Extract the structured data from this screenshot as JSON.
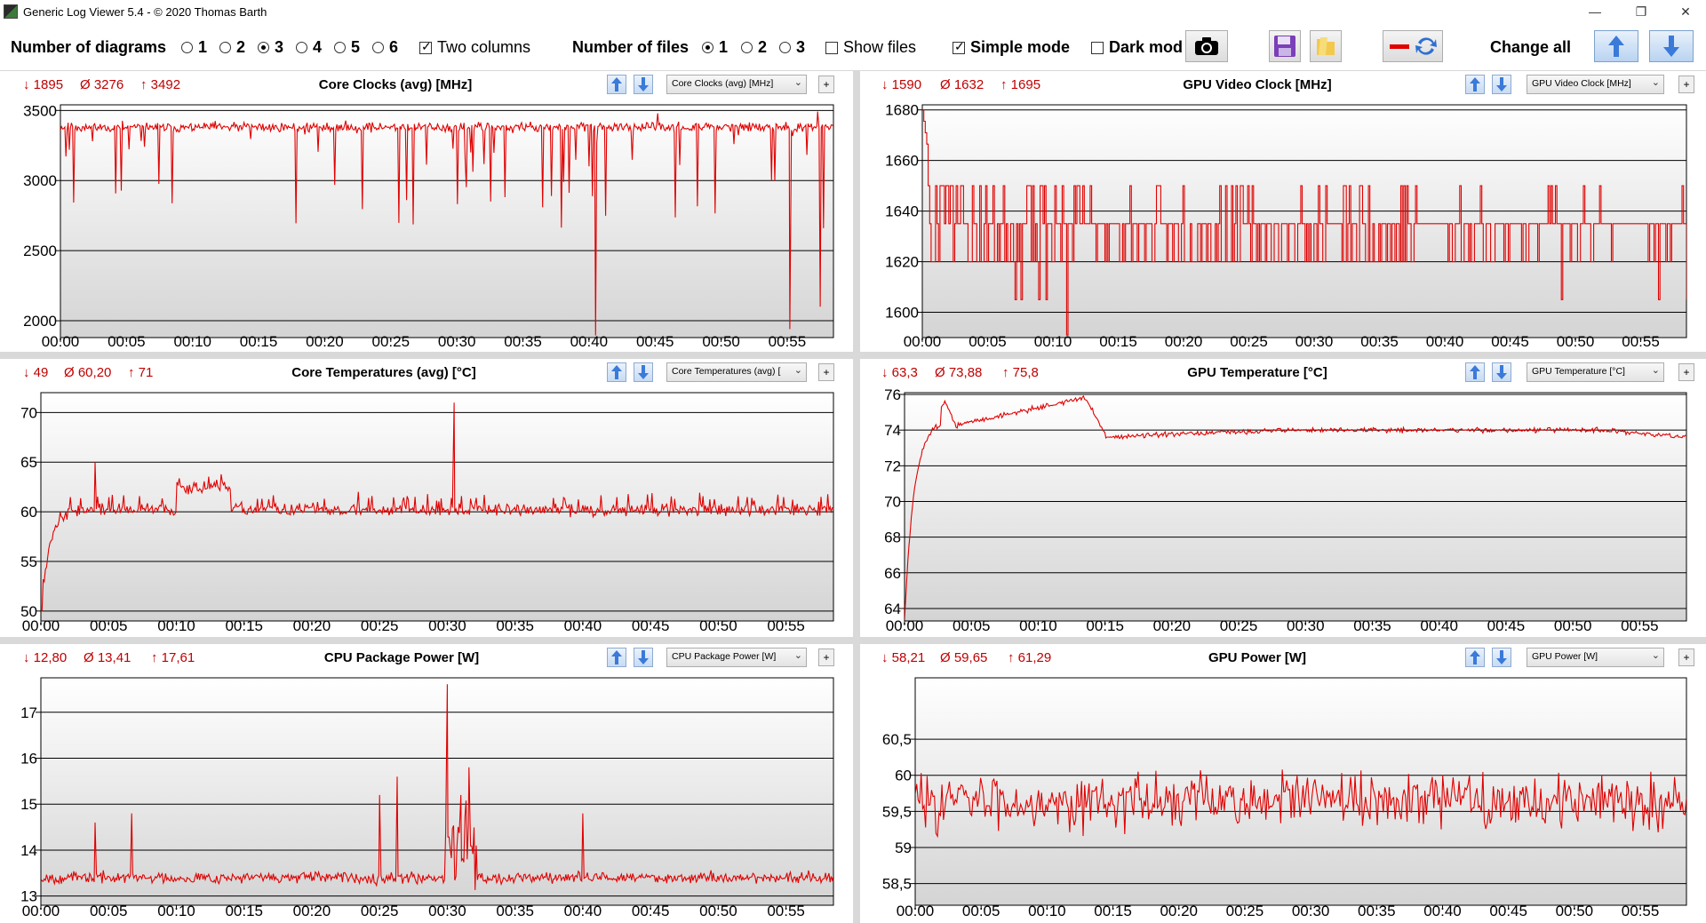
{
  "window": {
    "title": "Generic Log Viewer 5.4 - © 2020 Thomas Barth",
    "minimize": "—",
    "restore": "❐",
    "close": "✕"
  },
  "toolbar": {
    "num_diagrams_label": "Number of diagrams",
    "diagram_options": [
      "1",
      "2",
      "3",
      "4",
      "5",
      "6"
    ],
    "diagram_selected": "3",
    "two_columns_label": "Two columns",
    "two_columns_checked": true,
    "num_files_label": "Number of files",
    "file_options": [
      "1",
      "2",
      "3"
    ],
    "file_selected": "1",
    "show_files_label": "Show files",
    "show_files_checked": false,
    "simple_mode_label": "Simple mode",
    "simple_mode_checked": true,
    "dark_mode_label": "Dark mod",
    "dark_mode_checked": false,
    "change_all_label": "Change all",
    "icons": [
      "camera-icon",
      "save-icon",
      "folder-icon",
      "line-swap-icon",
      "arrow-up-icon",
      "arrow-down-icon"
    ]
  },
  "colors": {
    "series": "#e00000",
    "stats": "#c00000",
    "accent_blue": "#3a7ad9"
  },
  "panels": [
    {
      "id": "core-clocks",
      "min": "1895",
      "avg": "3276",
      "max": "3492",
      "title": "Core Clocks (avg) [MHz]",
      "select_value": "Core Clocks (avg) [MHz]",
      "chart_data": {
        "type": "line",
        "x_tick_labels": [
          "00:00",
          "00:05",
          "00:10",
          "00:15",
          "00:20",
          "00:25",
          "00:30",
          "00:35",
          "00:40",
          "00:45",
          "00:50",
          "00:55"
        ],
        "x_range_minutes": [
          0,
          58.5
        ],
        "y_ticks": [
          {
            "value": 2000,
            "label": "2000"
          },
          {
            "value": 2500,
            "label": "2500"
          },
          {
            "value": 3000,
            "label": "3000"
          },
          {
            "value": 3500,
            "label": "3500"
          }
        ],
        "ylim": [
          1880,
          3540
        ],
        "baseline": 3380,
        "noise": 50,
        "spike_rate": 0.07,
        "spike_depth": 700,
        "big_dips": [
          {
            "t": 40.5,
            "v": 1895
          },
          {
            "t": 55.2,
            "v": 1940
          },
          {
            "t": 57.5,
            "v": 2100
          }
        ],
        "peaks": [
          {
            "t": 45.2,
            "v": 3480
          },
          {
            "t": 57.3,
            "v": 3492
          }
        ],
        "seed": 11,
        "points": 700
      }
    },
    {
      "id": "gpu-video-clock",
      "min": "1590",
      "avg": "1632",
      "max": "1695",
      "title": "GPU Video Clock [MHz]",
      "select_value": "GPU Video Clock [MHz]",
      "chart_data": {
        "type": "step",
        "x_tick_labels": [
          "00:00",
          "00:05",
          "00:10",
          "00:15",
          "00:20",
          "00:25",
          "00:30",
          "00:35",
          "00:40",
          "00:45",
          "00:50",
          "00:55"
        ],
        "x_range_minutes": [
          0,
          58.5
        ],
        "y_ticks": [
          {
            "value": 1600,
            "label": "1600"
          },
          {
            "value": 1620,
            "label": "1620"
          },
          {
            "value": 1640,
            "label": "1640"
          },
          {
            "value": 1660,
            "label": "1660"
          },
          {
            "value": 1680,
            "label": "1680"
          }
        ],
        "ylim": [
          1590,
          1682
        ],
        "levels": [
          1620,
          1635,
          1650
        ],
        "seed": 23,
        "points": 520
      }
    },
    {
      "id": "core-temps",
      "min": "49",
      "avg": "60,20",
      "max": "71",
      "title": "Core Temperatures (avg) [°C]",
      "select_value": "Core Temperatures (avg) [",
      "chart_data": {
        "type": "line",
        "x_tick_labels": [
          "00:00",
          "00:05",
          "00:10",
          "00:15",
          "00:20",
          "00:25",
          "00:30",
          "00:35",
          "00:40",
          "00:45",
          "00:50",
          "00:55"
        ],
        "x_range_minutes": [
          0,
          58.5
        ],
        "y_ticks": [
          {
            "value": 50,
            "label": "50"
          },
          {
            "value": 55,
            "label": "55"
          },
          {
            "value": 60,
            "label": "60"
          },
          {
            "value": 65,
            "label": "65"
          },
          {
            "value": 70,
            "label": "70"
          }
        ],
        "ylim": [
          49,
          72
        ],
        "start": 49,
        "settle": 60.2,
        "warm_segment": [
          10,
          14,
          62.5
        ],
        "peaks": [
          {
            "t": 30.5,
            "v": 71
          },
          {
            "t": 4,
            "v": 65
          }
        ],
        "noise": 0.9,
        "seed": 37,
        "points": 700
      }
    },
    {
      "id": "gpu-temp",
      "min": "63,3",
      "avg": "73,88",
      "max": "75,8",
      "title": "GPU Temperature [°C]",
      "select_value": "GPU Temperature [°C]",
      "chart_data": {
        "type": "line",
        "x_tick_labels": [
          "00:00",
          "00:05",
          "00:10",
          "00:15",
          "00:20",
          "00:25",
          "00:30",
          "00:35",
          "00:40",
          "00:45",
          "00:50",
          "00:55"
        ],
        "x_range_minutes": [
          0,
          58.5
        ],
        "y_ticks": [
          {
            "value": 64,
            "label": "64"
          },
          {
            "value": 66,
            "label": "66"
          },
          {
            "value": 68,
            "label": "68"
          },
          {
            "value": 70,
            "label": "70"
          },
          {
            "value": 72,
            "label": "72"
          },
          {
            "value": 74,
            "label": "74"
          },
          {
            "value": 76,
            "label": "76"
          }
        ],
        "ylim": [
          63.3,
          76.1
        ],
        "start": 63.3,
        "hump_peak": 75.8,
        "settle": 73.85,
        "noise": 0.2,
        "seed": 51,
        "points": 700
      }
    },
    {
      "id": "cpu-power",
      "min": "12,80",
      "avg": "13,41",
      "max": "17,61",
      "title": "CPU Package Power [W]",
      "select_value": "CPU Package Power [W]",
      "chart_data": {
        "type": "line",
        "x_tick_labels": [
          "00:00",
          "00:05",
          "00:10",
          "00:15",
          "00:20",
          "00:25",
          "00:30",
          "00:35",
          "00:40",
          "00:45",
          "00:50",
          "00:55"
        ],
        "x_range_minutes": [
          0,
          58.5
        ],
        "y_ticks": [
          {
            "value": 13,
            "label": "13"
          },
          {
            "value": 14,
            "label": "14"
          },
          {
            "value": 15,
            "label": "15"
          },
          {
            "value": 16,
            "label": "16"
          },
          {
            "value": 17,
            "label": "17"
          }
        ],
        "ylim": [
          12.8,
          17.75
        ],
        "baseline": 13.4,
        "noise": 0.18,
        "peaks": [
          {
            "t": 30.0,
            "v": 17.61
          },
          {
            "t": 31.6,
            "v": 15.8
          },
          {
            "t": 26.3,
            "v": 15.6
          },
          {
            "t": 25.0,
            "v": 15.2
          },
          {
            "t": 4.0,
            "v": 14.6
          },
          {
            "t": 6.7,
            "v": 14.8
          },
          {
            "t": 40.0,
            "v": 14.8
          },
          {
            "t": 31.0,
            "v": 15.2
          }
        ],
        "busy_segment": [
          29.8,
          32.2,
          14.2
        ],
        "seed": 67,
        "points": 700
      }
    },
    {
      "id": "gpu-power",
      "min": "58,21",
      "avg": "59,65",
      "max": "61,29",
      "title": "GPU Power [W]",
      "select_value": "GPU Power [W]",
      "chart_data": {
        "type": "line",
        "x_tick_labels": [
          "00:00",
          "00:05",
          "00:10",
          "00:15",
          "00:20",
          "00:25",
          "00:30",
          "00:35",
          "00:40",
          "00:45",
          "00:50",
          "00:55"
        ],
        "x_range_minutes": [
          0,
          58.5
        ],
        "y_ticks": [
          {
            "value": 58.5,
            "label": "58,5"
          },
          {
            "value": 59,
            "label": "59"
          },
          {
            "value": 59.5,
            "label": "59,5"
          },
          {
            "value": 60,
            "label": "60"
          },
          {
            "value": 60.5,
            "label": "60,5"
          }
        ],
        "ylim": [
          58.2,
          61.35
        ],
        "baseline": 59.65,
        "noise": 0.55,
        "seed": 83,
        "points": 520
      }
    }
  ]
}
